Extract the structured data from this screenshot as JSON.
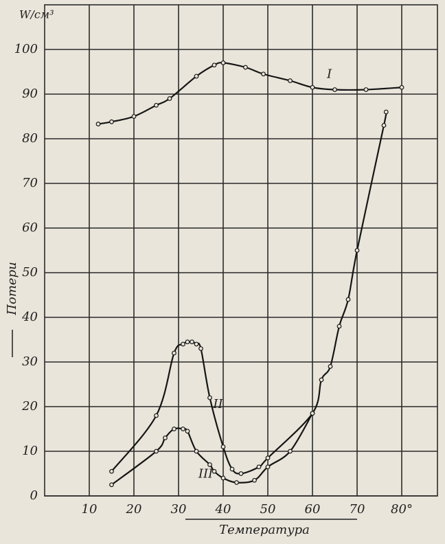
{
  "chart_data": {
    "type": "line",
    "y_label": "Потери",
    "y_unit": "W/см³",
    "x_label": "Температура",
    "xlim": [
      0,
      88
    ],
    "ylim": [
      0,
      110
    ],
    "xticks": [
      10,
      20,
      30,
      40,
      50,
      60,
      70,
      {
        "value": 80,
        "label": "80°"
      }
    ],
    "yticks": [
      0,
      10,
      20,
      30,
      40,
      50,
      60,
      70,
      80,
      90,
      100
    ],
    "grid": true,
    "series": [
      {
        "name": "I",
        "color": "#151515",
        "x": [
          12,
          15,
          20,
          25,
          28,
          34,
          38,
          40,
          45,
          49,
          55,
          60,
          65,
          72,
          80
        ],
        "values": [
          83.3,
          83.8,
          85,
          87.5,
          89,
          94,
          96.5,
          97,
          96,
          94.5,
          93,
          91.5,
          91,
          91,
          91.5
        ]
      },
      {
        "name": "II",
        "color": "#151515",
        "x": [
          15,
          25,
          29,
          31,
          32,
          33,
          34,
          35,
          37,
          40,
          42,
          44,
          48,
          50,
          60,
          62,
          64,
          66,
          68,
          70,
          76,
          76.5
        ],
        "values": [
          5.5,
          18,
          32,
          34,
          34.5,
          34.5,
          34,
          33,
          22,
          11,
          6,
          5,
          6.5,
          8.5,
          18.5,
          26,
          29,
          38,
          44,
          55,
          83,
          86
        ]
      },
      {
        "name": "III",
        "color": "#151515",
        "x": [
          15,
          25,
          27,
          29,
          31,
          32,
          34,
          37,
          38,
          40,
          43,
          47,
          50,
          55,
          60
        ],
        "values": [
          2.5,
          10,
          13,
          15,
          15,
          14.5,
          10,
          7,
          5.5,
          4,
          3,
          3.5,
          6.5,
          10,
          18.5
        ]
      }
    ]
  }
}
